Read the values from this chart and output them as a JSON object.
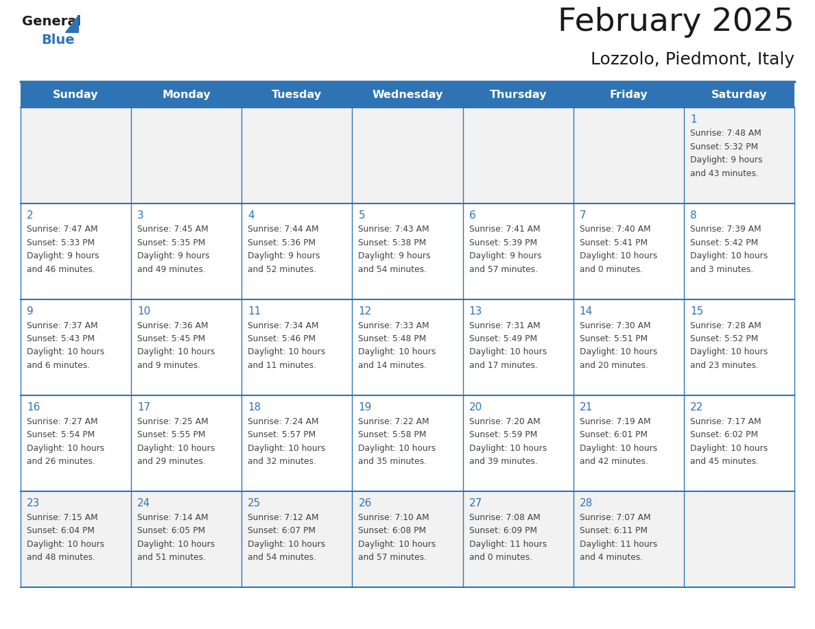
{
  "title": "February 2025",
  "subtitle": "Lozzolo, Piedmont, Italy",
  "days_of_week": [
    "Sunday",
    "Monday",
    "Tuesday",
    "Wednesday",
    "Thursday",
    "Friday",
    "Saturday"
  ],
  "header_bg": "#2E74B5",
  "header_text": "#FFFFFF",
  "row_bg_normal": "#FFFFFF",
  "row_bg_last": "#F2F2F2",
  "row_bg_first": "#F2F2F2",
  "cell_border": "#2E74B5",
  "text_color": "#404040",
  "day_num_color": "#2E74B5",
  "background": "#FFFFFF",
  "calendar_data": [
    [
      null,
      null,
      null,
      null,
      null,
      null,
      {
        "day": "1",
        "sunrise": "7:48 AM",
        "sunset": "5:32 PM",
        "daylight": "9 hours",
        "daylight2": "and 43 minutes."
      }
    ],
    [
      {
        "day": "2",
        "sunrise": "7:47 AM",
        "sunset": "5:33 PM",
        "daylight": "9 hours",
        "daylight2": "and 46 minutes."
      },
      {
        "day": "3",
        "sunrise": "7:45 AM",
        "sunset": "5:35 PM",
        "daylight": "9 hours",
        "daylight2": "and 49 minutes."
      },
      {
        "day": "4",
        "sunrise": "7:44 AM",
        "sunset": "5:36 PM",
        "daylight": "9 hours",
        "daylight2": "and 52 minutes."
      },
      {
        "day": "5",
        "sunrise": "7:43 AM",
        "sunset": "5:38 PM",
        "daylight": "9 hours",
        "daylight2": "and 54 minutes."
      },
      {
        "day": "6",
        "sunrise": "7:41 AM",
        "sunset": "5:39 PM",
        "daylight": "9 hours",
        "daylight2": "and 57 minutes."
      },
      {
        "day": "7",
        "sunrise": "7:40 AM",
        "sunset": "5:41 PM",
        "daylight": "10 hours",
        "daylight2": "and 0 minutes."
      },
      {
        "day": "8",
        "sunrise": "7:39 AM",
        "sunset": "5:42 PM",
        "daylight": "10 hours",
        "daylight2": "and 3 minutes."
      }
    ],
    [
      {
        "day": "9",
        "sunrise": "7:37 AM",
        "sunset": "5:43 PM",
        "daylight": "10 hours",
        "daylight2": "and 6 minutes."
      },
      {
        "day": "10",
        "sunrise": "7:36 AM",
        "sunset": "5:45 PM",
        "daylight": "10 hours",
        "daylight2": "and 9 minutes."
      },
      {
        "day": "11",
        "sunrise": "7:34 AM",
        "sunset": "5:46 PM",
        "daylight": "10 hours",
        "daylight2": "and 11 minutes."
      },
      {
        "day": "12",
        "sunrise": "7:33 AM",
        "sunset": "5:48 PM",
        "daylight": "10 hours",
        "daylight2": "and 14 minutes."
      },
      {
        "day": "13",
        "sunrise": "7:31 AM",
        "sunset": "5:49 PM",
        "daylight": "10 hours",
        "daylight2": "and 17 minutes."
      },
      {
        "day": "14",
        "sunrise": "7:30 AM",
        "sunset": "5:51 PM",
        "daylight": "10 hours",
        "daylight2": "and 20 minutes."
      },
      {
        "day": "15",
        "sunrise": "7:28 AM",
        "sunset": "5:52 PM",
        "daylight": "10 hours",
        "daylight2": "and 23 minutes."
      }
    ],
    [
      {
        "day": "16",
        "sunrise": "7:27 AM",
        "sunset": "5:54 PM",
        "daylight": "10 hours",
        "daylight2": "and 26 minutes."
      },
      {
        "day": "17",
        "sunrise": "7:25 AM",
        "sunset": "5:55 PM",
        "daylight": "10 hours",
        "daylight2": "and 29 minutes."
      },
      {
        "day": "18",
        "sunrise": "7:24 AM",
        "sunset": "5:57 PM",
        "daylight": "10 hours",
        "daylight2": "and 32 minutes."
      },
      {
        "day": "19",
        "sunrise": "7:22 AM",
        "sunset": "5:58 PM",
        "daylight": "10 hours",
        "daylight2": "and 35 minutes."
      },
      {
        "day": "20",
        "sunrise": "7:20 AM",
        "sunset": "5:59 PM",
        "daylight": "10 hours",
        "daylight2": "and 39 minutes."
      },
      {
        "day": "21",
        "sunrise": "7:19 AM",
        "sunset": "6:01 PM",
        "daylight": "10 hours",
        "daylight2": "and 42 minutes."
      },
      {
        "day": "22",
        "sunrise": "7:17 AM",
        "sunset": "6:02 PM",
        "daylight": "10 hours",
        "daylight2": "and 45 minutes."
      }
    ],
    [
      {
        "day": "23",
        "sunrise": "7:15 AM",
        "sunset": "6:04 PM",
        "daylight": "10 hours",
        "daylight2": "and 48 minutes."
      },
      {
        "day": "24",
        "sunrise": "7:14 AM",
        "sunset": "6:05 PM",
        "daylight": "10 hours",
        "daylight2": "and 51 minutes."
      },
      {
        "day": "25",
        "sunrise": "7:12 AM",
        "sunset": "6:07 PM",
        "daylight": "10 hours",
        "daylight2": "and 54 minutes."
      },
      {
        "day": "26",
        "sunrise": "7:10 AM",
        "sunset": "6:08 PM",
        "daylight": "10 hours",
        "daylight2": "and 57 minutes."
      },
      {
        "day": "27",
        "sunrise": "7:08 AM",
        "sunset": "6:09 PM",
        "daylight": "11 hours",
        "daylight2": "and 0 minutes."
      },
      {
        "day": "28",
        "sunrise": "7:07 AM",
        "sunset": "6:11 PM",
        "daylight": "11 hours",
        "daylight2": "and 4 minutes."
      },
      null
    ]
  ]
}
